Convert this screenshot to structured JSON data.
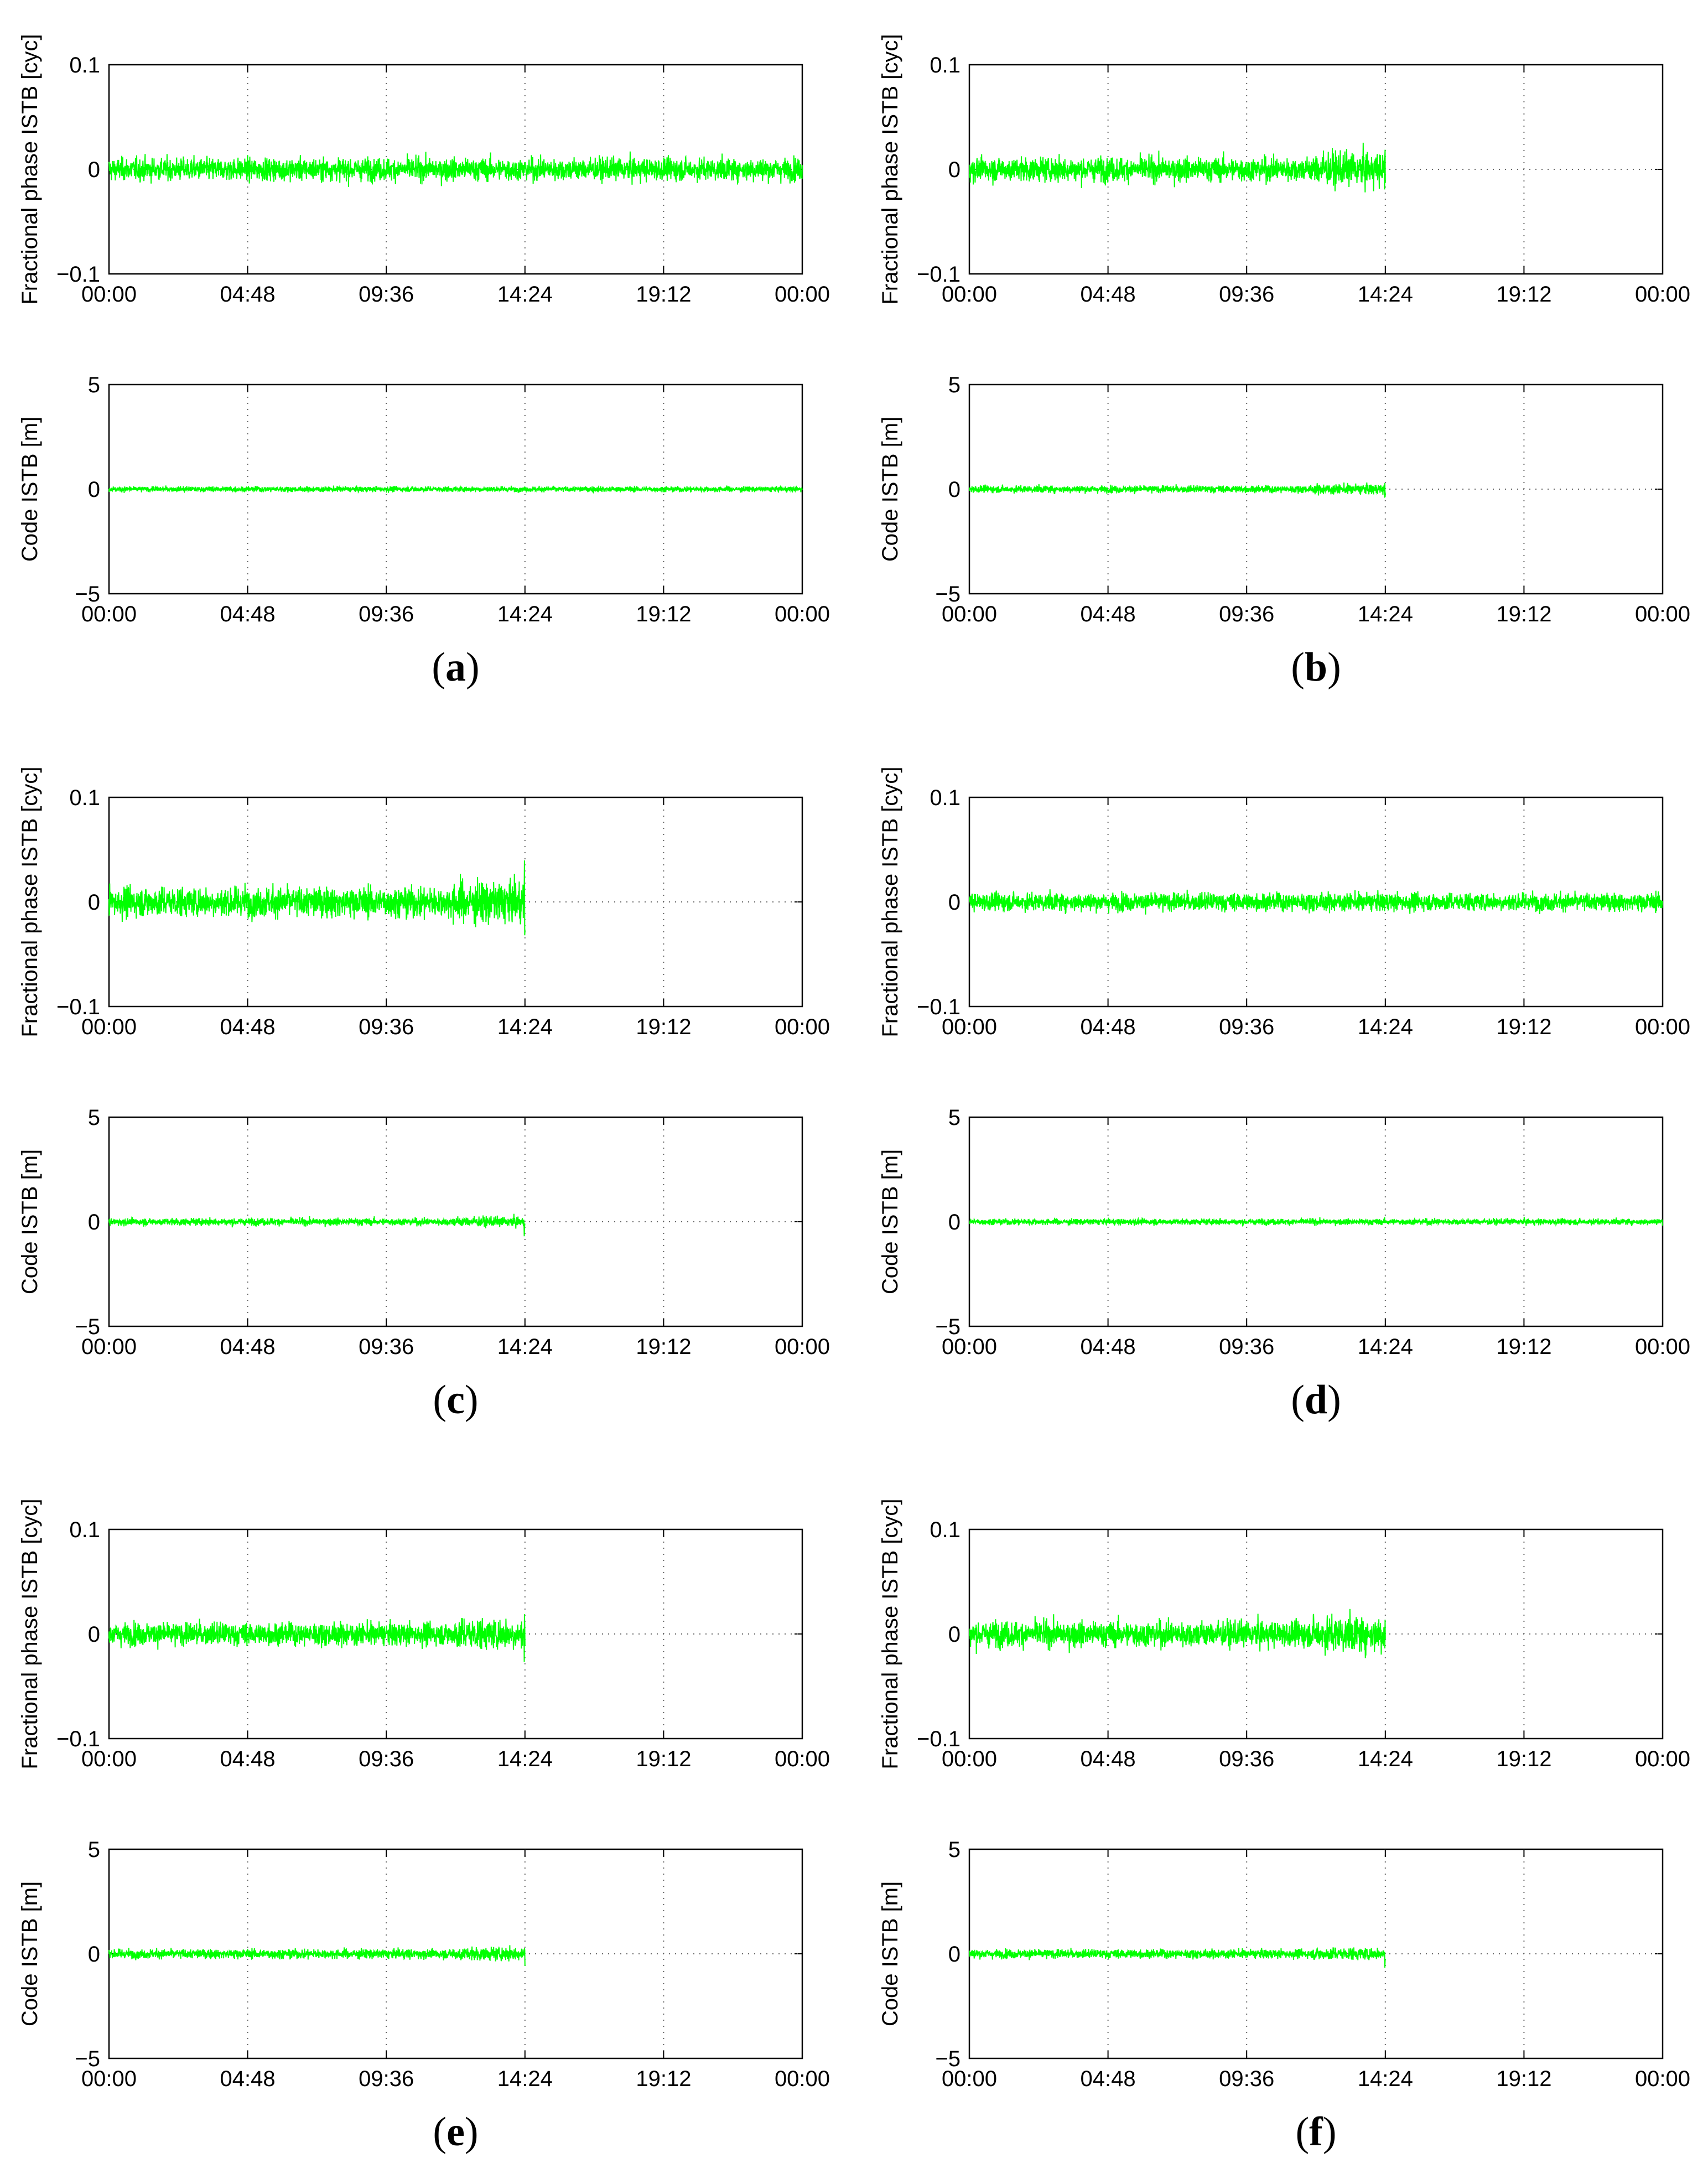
{
  "figure": {
    "panels": [
      {
        "id": "a",
        "label_prefix": "(",
        "label_letter": "a",
        "label_suffix": ")",
        "end_time": "00:00",
        "phase_amp": 0.0075,
        "code_amp": 0.09
      },
      {
        "id": "b",
        "label_prefix": "(",
        "label_letter": "b",
        "label_suffix": ")",
        "end_time": "14:24",
        "phase_amp": 0.008,
        "code_amp": 0.12
      },
      {
        "id": "c",
        "label_prefix": "(",
        "label_letter": "c",
        "label_suffix": ")",
        "end_time": "14:24",
        "phase_amp": 0.01,
        "code_amp": 0.12
      },
      {
        "id": "d",
        "label_prefix": "(",
        "label_letter": "d",
        "label_suffix": ")",
        "end_time": "00:00",
        "phase_amp": 0.006,
        "code_amp": 0.1
      },
      {
        "id": "e",
        "label_prefix": "(",
        "label_letter": "e",
        "label_suffix": ")",
        "end_time": "14:24",
        "phase_amp": 0.0075,
        "code_amp": 0.16
      },
      {
        "id": "f",
        "label_prefix": "(",
        "label_letter": "f",
        "label_suffix": ")",
        "end_time": "14:24",
        "phase_amp": 0.0085,
        "code_amp": 0.15
      }
    ]
  },
  "chart_data": [
    {
      "type": "line",
      "role": "phase",
      "ylabel": "Fractional phase ISTB [cyc]",
      "ylim": [
        -0.1,
        0.1
      ],
      "yticks": [
        "0.1",
        "0",
        "−0.1"
      ],
      "ytick_values": [
        0.1,
        0,
        -0.1
      ],
      "xticks": [
        "00:00",
        "04:48",
        "09:36",
        "14:24",
        "19:12",
        "00:00"
      ],
      "xlim": [
        "00:00",
        "00:00 (+1 day)"
      ],
      "grid": "dotted, on tick marks",
      "series_color": "#00ff00",
      "series_mean": 0
    },
    {
      "type": "line",
      "role": "code",
      "ylabel": "Code ISTB [m]",
      "ylim": [
        -5,
        5
      ],
      "yticks": [
        "5",
        "0",
        "−5"
      ],
      "ytick_values": [
        5,
        0,
        -5
      ],
      "xticks": [
        "00:00",
        "04:48",
        "09:36",
        "14:24",
        "19:12",
        "00:00"
      ],
      "xlim": [
        "00:00",
        "00:00 (+1 day)"
      ],
      "grid": "dotted, on tick marks",
      "series_color": "#00ff00",
      "series_mean": 0
    }
  ]
}
